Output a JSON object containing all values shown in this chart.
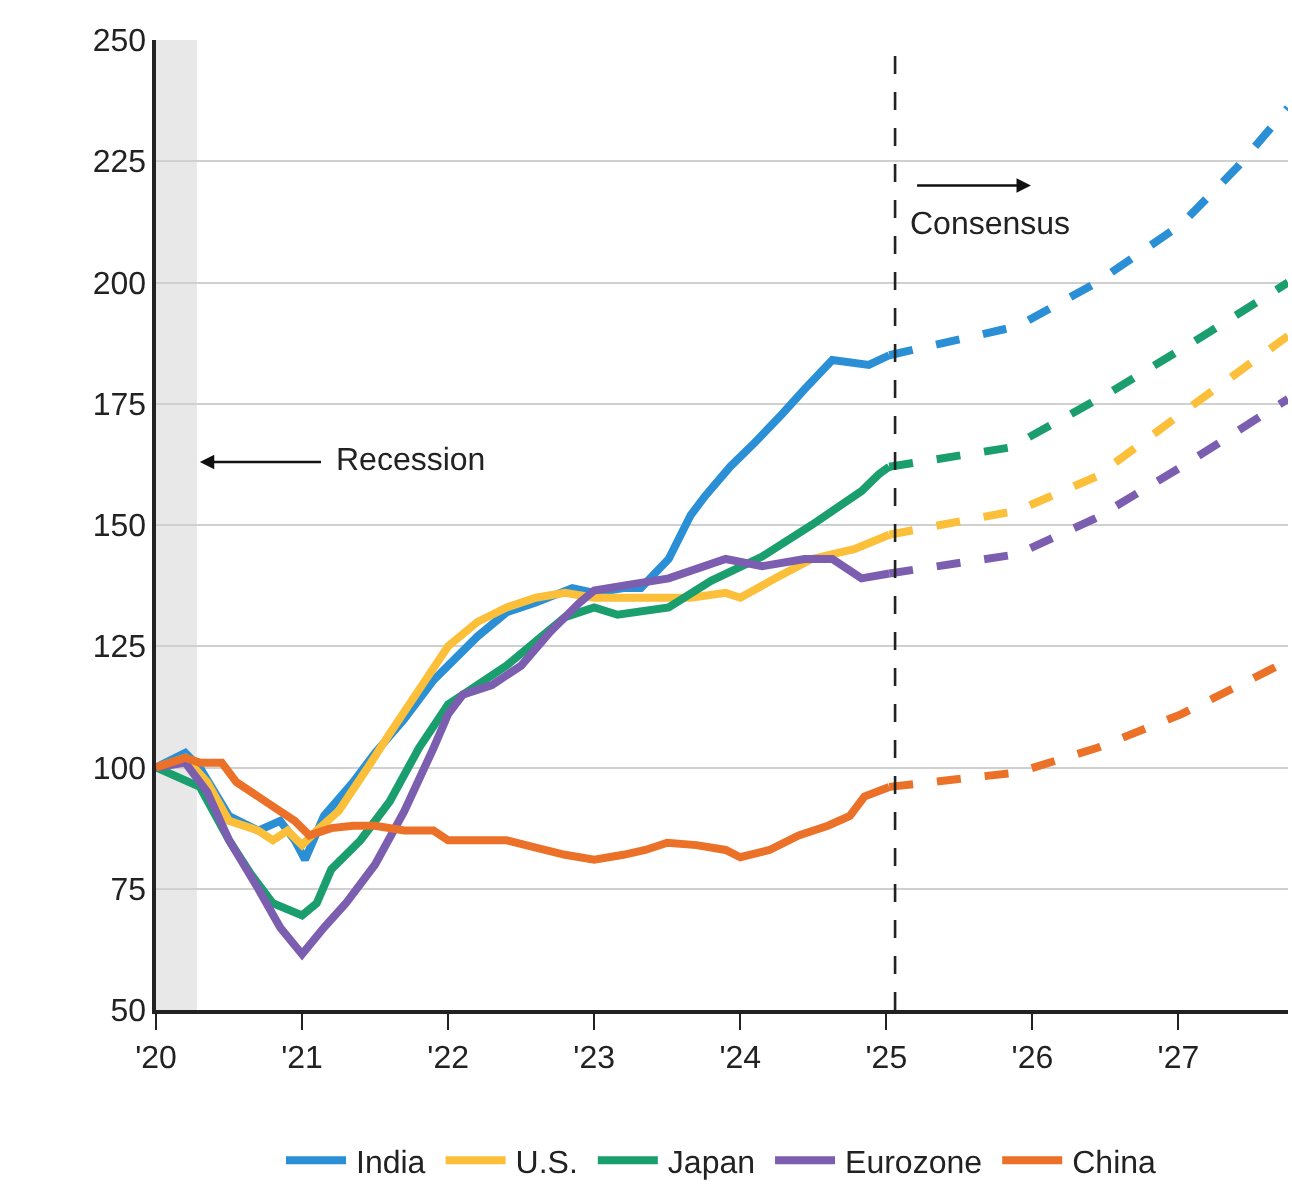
{
  "chart_data": {
    "type": "line",
    "xlim": [
      2020,
      2027.75
    ],
    "ylim": [
      50,
      250
    ],
    "xticks": [
      {
        "value": 2020,
        "label": "'20"
      },
      {
        "value": 2021,
        "label": "'21"
      },
      {
        "value": 2022,
        "label": "'22"
      },
      {
        "value": 2023,
        "label": "'23"
      },
      {
        "value": 2024,
        "label": "'24"
      },
      {
        "value": 2025,
        "label": "'25"
      },
      {
        "value": 2026,
        "label": "'26"
      },
      {
        "value": 2027,
        "label": "'27"
      }
    ],
    "yticks": [
      50,
      75,
      100,
      125,
      150,
      175,
      200,
      225,
      250
    ],
    "grid": "y",
    "legend": "bottom",
    "marker": "none",
    "series": [
      {
        "name": "India",
        "color": "#2b8fd6",
        "line_style": "solid",
        "x": [
          2020,
          2020.2,
          2020.3,
          2020.5,
          2020.7,
          2020.85,
          2020.95,
          2021.02,
          2021.15,
          2021.35,
          2021.5,
          2021.7,
          2021.9,
          2022.0,
          2022.2,
          2022.4,
          2022.6,
          2022.85,
          2023.0,
          2023.2,
          2023.32,
          2023.51,
          2023.66,
          2023.76,
          2023.93,
          2024.1,
          2024.29,
          2024.44,
          2024.63,
          2024.88,
          2025.02
        ],
        "values": [
          100,
          103,
          100,
          90,
          87,
          89,
          85,
          81,
          90,
          97,
          103,
          110,
          118,
          121,
          127,
          132,
          134,
          137,
          136,
          137,
          137,
          143,
          152,
          156,
          162,
          167,
          173,
          178,
          184,
          183,
          185
        ]
      },
      {
        "name": "U.S.",
        "color": "#fbbf3a",
        "line_style": "solid",
        "x": [
          2020,
          2020.2,
          2020.35,
          2020.5,
          2020.7,
          2020.8,
          2020.9,
          2021.0,
          2021.1,
          2021.25,
          2021.45,
          2021.6,
          2021.8,
          2022.0,
          2022.2,
          2022.4,
          2022.6,
          2022.8,
          2023.0,
          2023.22,
          2023.66,
          2023.9,
          2024.0,
          2024.24,
          2024.49,
          2024.78,
          2025.02
        ],
        "values": [
          100,
          102,
          97,
          89,
          87,
          85,
          87,
          84,
          87,
          91,
          100,
          107,
          116,
          125,
          130,
          133,
          135,
          136,
          135,
          135,
          135,
          136,
          135,
          139,
          143,
          145,
          148
        ]
      },
      {
        "name": "Japan",
        "color": "#1a9e6e",
        "line_style": "solid",
        "x": [
          2020,
          2020.15,
          2020.3,
          2020.5,
          2020.65,
          2020.8,
          2021.0,
          2021.1,
          2021.2,
          2021.4,
          2021.6,
          2021.8,
          2022.0,
          2022.2,
          2022.4,
          2022.6,
          2022.8,
          2023.0,
          2023.16,
          2023.51,
          2023.8,
          2024.15,
          2024.49,
          2024.83,
          2024.95,
          2025.02
        ],
        "values": [
          100,
          98,
          96,
          85,
          78,
          72,
          69.5,
          72,
          79,
          85,
          93,
          104,
          113,
          117,
          121,
          126,
          131,
          133,
          131.5,
          133,
          138.5,
          143.5,
          150,
          157,
          160.5,
          162
        ]
      },
      {
        "name": "Eurozone",
        "color": "#7b5eb0",
        "line_style": "solid",
        "x": [
          2020,
          2020.2,
          2020.35,
          2020.5,
          2020.7,
          2020.85,
          2021.0,
          2021.15,
          2021.3,
          2021.5,
          2021.7,
          2021.9,
          2022.0,
          2022.1,
          2022.3,
          2022.5,
          2022.7,
          2022.9,
          2023.0,
          2023.2,
          2023.51,
          2023.9,
          2024.15,
          2024.44,
          2024.63,
          2024.83,
          2025.02
        ],
        "values": [
          100,
          101,
          95,
          85,
          75,
          67,
          61.5,
          67,
          72,
          80,
          91,
          104,
          111,
          115,
          117,
          121,
          128,
          134,
          136.5,
          137.5,
          139,
          143,
          141.5,
          143,
          143,
          139,
          140
        ]
      },
      {
        "name": "China",
        "color": "#ec7128",
        "line_style": "solid",
        "x": [
          2020,
          2020.2,
          2020.3,
          2020.45,
          2020.55,
          2020.75,
          2020.95,
          2021.05,
          2021.2,
          2021.35,
          2021.5,
          2021.7,
          2021.9,
          2022.0,
          2022.2,
          2022.4,
          2022.6,
          2022.8,
          2023.0,
          2023.2,
          2023.35,
          2023.5,
          2023.7,
          2023.9,
          2024.0,
          2024.2,
          2024.4,
          2024.6,
          2024.75,
          2024.85,
          2025.02
        ],
        "values": [
          100,
          102,
          101,
          101,
          97,
          93,
          89,
          86,
          87.5,
          88,
          88,
          87,
          87,
          85,
          85,
          85,
          83.5,
          82,
          81,
          82,
          83,
          84.5,
          84,
          83,
          81.5,
          83,
          86,
          88,
          90,
          94,
          96
        ]
      },
      {
        "color": "#2b8fd6",
        "line_style": "dashed",
        "x": [
          2025.02,
          2025.9,
          2026.44,
          2027.02,
          2027.41,
          2027.75
        ],
        "values": [
          185,
          191,
          200,
          212,
          224,
          236
        ]
      },
      {
        "color": "#fbbf3a",
        "line_style": "dashed",
        "x": [
          2025.02,
          2025.9,
          2026.44,
          2027.02,
          2027.75
        ],
        "values": [
          148,
          153,
          160,
          173,
          189
        ]
      },
      {
        "color": "#1a9e6e",
        "line_style": "dashed",
        "x": [
          2025.02,
          2025.85,
          2026.54,
          2027.17,
          2027.75
        ],
        "values": [
          162,
          166,
          177.5,
          189,
          200
        ]
      },
      {
        "color": "#7b5eb0",
        "line_style": "dashed",
        "x": [
          2025.02,
          2025.9,
          2026.44,
          2027.02,
          2027.75
        ],
        "values": [
          140,
          144,
          151.5,
          162,
          176
        ]
      },
      {
        "color": "#ec7128",
        "line_style": "dashed",
        "x": [
          2025.02,
          2025.9,
          2026.44,
          2027.02,
          2027.75
        ],
        "values": [
          96,
          99,
          104,
          111,
          122
        ]
      }
    ],
    "bands": [
      {
        "axis": "x",
        "from": 2020,
        "to": 2020.28,
        "color": "#e8e8e8"
      }
    ],
    "ref_lines": [
      {
        "axis": "x",
        "value": 2025.06,
        "color": "#222222",
        "line_style": "dashed"
      }
    ],
    "annotations": [
      {
        "text": "Recession",
        "x": 2020.3,
        "y": 163
      },
      "Consensus"
    ]
  }
}
